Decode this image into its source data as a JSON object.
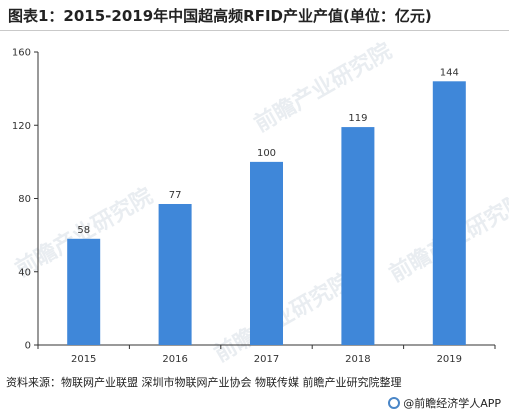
{
  "title": "图表1：2015-2019年中国超高频RFID产业产值(单位：亿元)",
  "source": "资料来源：物联网产业联盟 深圳市物联网产业协会 物联传媒 前瞻产业研究院整理",
  "brand": "@前瞻经济学人APP",
  "watermark": "前瞻产业研究院",
  "colors": {
    "bar": "#3f87d9",
    "axis": "#333333"
  },
  "chart_data": {
    "type": "bar",
    "categories": [
      "2015",
      "2016",
      "2017",
      "2018",
      "2019"
    ],
    "values": [
      58,
      77,
      100,
      119,
      144
    ],
    "data_labels": [
      "58",
      "77",
      "100",
      "119",
      "144"
    ],
    "yticks": [
      "0",
      "40",
      "80",
      "120",
      "160"
    ],
    "ylim": [
      0,
      160
    ],
    "grid": false,
    "legend": "none"
  }
}
